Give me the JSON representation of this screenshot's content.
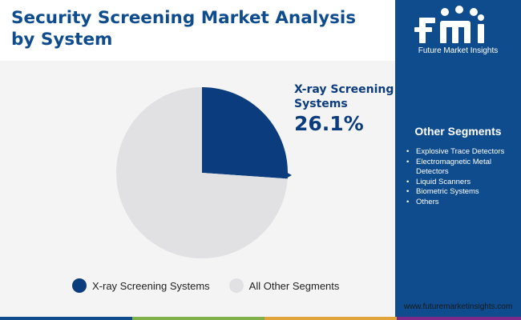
{
  "title": "Security Screening Market Analysis by System",
  "chart_data": {
    "type": "pie",
    "slices": [
      {
        "label": "X-ray Screening Systems",
        "value": 26.1,
        "color": "#0b3c7d"
      },
      {
        "label": "All Other Segments",
        "value": 73.9,
        "color": "#e1e1e3"
      }
    ],
    "callout": {
      "label": "X-ray Screening Systems",
      "value_text": "26.1%"
    },
    "legend_position": "bottom"
  },
  "brand": {
    "logo_text": "Future Market Insights",
    "website": "www.futuremarketinsights.com"
  },
  "other_segments": {
    "title": "Other Segments",
    "items": [
      "Explosive Trace Detectors",
      "Electromagnetic Metal Detectors",
      "Liquid Scanners",
      "Biometric Systems",
      "Others"
    ]
  },
  "colors": {
    "primary": "#0e4c8e",
    "bar": [
      "#0e4c8e",
      "#7fb04a",
      "#e0a43a",
      "#7b2a8c"
    ]
  }
}
